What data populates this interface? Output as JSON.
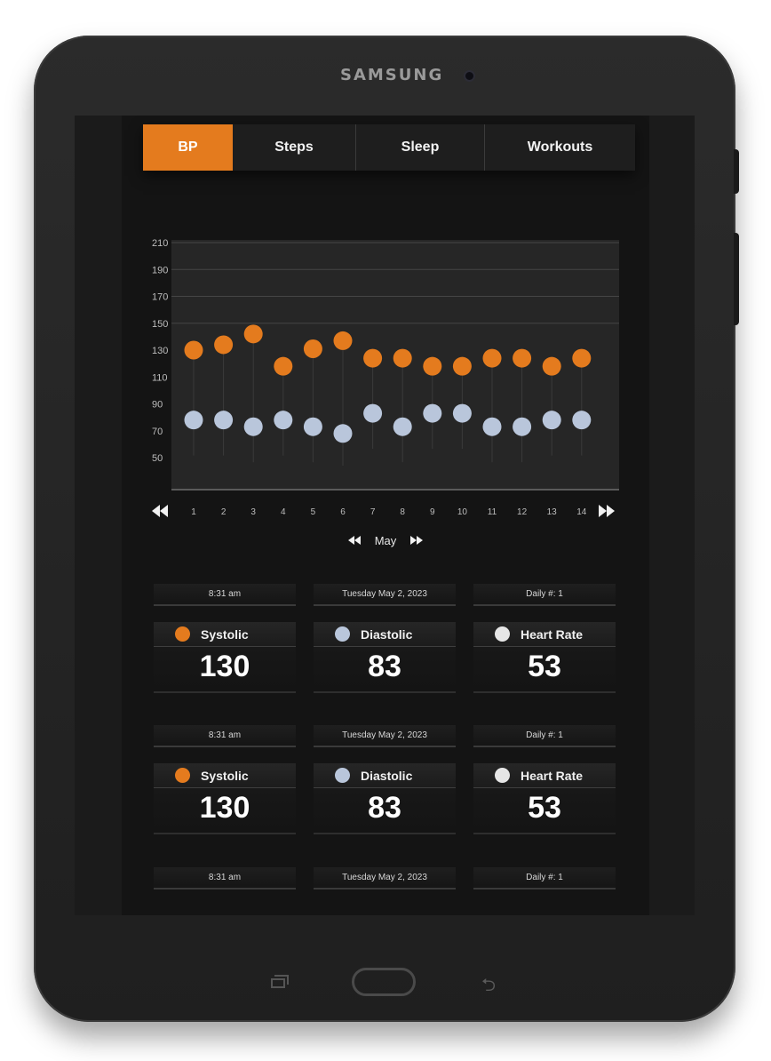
{
  "device": {
    "brand": "SAMSUNG"
  },
  "tabs": [
    {
      "label": "BP",
      "active": true
    },
    {
      "label": "Steps",
      "active": false
    },
    {
      "label": "Sleep",
      "active": false
    },
    {
      "label": "Workouts",
      "active": false
    }
  ],
  "colors": {
    "accent": "#e47b1e",
    "diastolic": "#b9c6db",
    "heart_rate": "#e6e6e6",
    "background": "#141414"
  },
  "chart_data": {
    "type": "scatter",
    "title": "",
    "xlabel": "",
    "ylabel": "",
    "x": [
      1,
      2,
      3,
      4,
      5,
      6,
      7,
      8,
      9,
      10,
      11,
      12,
      13,
      14
    ],
    "y_ticks": [
      210,
      190,
      170,
      150,
      130,
      110,
      90,
      70,
      50
    ],
    "ylim": [
      50,
      210
    ],
    "grid": true,
    "series": [
      {
        "values": [
          130,
          134,
          142,
          118,
          131,
          137,
          124,
          124,
          118,
          118,
          124,
          124,
          118,
          124
        ],
        "color": "#e47b1e"
      },
      {
        "values": [
          78,
          78,
          73,
          78,
          73,
          68,
          83,
          73,
          83,
          83,
          73,
          73,
          78,
          78
        ],
        "color": "#b9c6db"
      }
    ]
  },
  "chart_nav": {
    "prev_icon": "double-left-icon",
    "next_icon": "double-right-icon"
  },
  "month_nav": {
    "label": "May"
  },
  "records": [
    {
      "time": "8:31 am",
      "date": "Tuesday May 2, 2023",
      "daily": "Daily #: 1",
      "systolic": {
        "label": "Systolic",
        "value": "130"
      },
      "diastolic": {
        "label": "Diastolic",
        "value": "83"
      },
      "heart_rate": {
        "label": "Heart Rate",
        "value": "53"
      }
    },
    {
      "time": "8:31 am",
      "date": "Tuesday May 2, 2023",
      "daily": "Daily #: 1",
      "systolic": {
        "label": "Systolic",
        "value": "130"
      },
      "diastolic": {
        "label": "Diastolic",
        "value": "83"
      },
      "heart_rate": {
        "label": "Heart Rate",
        "value": "53"
      }
    },
    {
      "time": "8:31 am",
      "date": "Tuesday May 2, 2023",
      "daily": "Daily #: 1"
    }
  ]
}
